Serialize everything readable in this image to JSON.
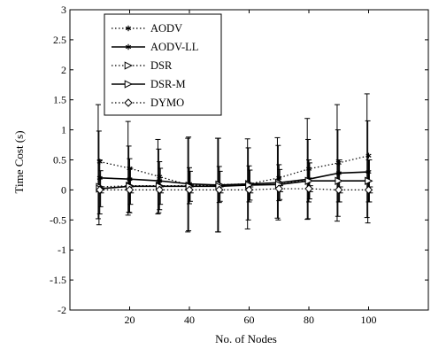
{
  "chart_data": {
    "type": "line",
    "title": "",
    "xlabel": "No. of Nodes",
    "ylabel": "Time Cost (s)",
    "xlim": [
      0,
      120
    ],
    "ylim": [
      -2,
      3
    ],
    "xticks": [
      20,
      40,
      60,
      80,
      100
    ],
    "yticks": [
      -2,
      -1.5,
      -1,
      -0.5,
      0,
      0.5,
      1,
      1.5,
      2,
      2.5,
      3
    ],
    "grid": false,
    "legend_position": "top-left",
    "x": [
      10,
      20,
      30,
      40,
      50,
      60,
      70,
      80,
      90,
      100
    ],
    "series": [
      {
        "name": "AODV",
        "line_style": "dotted",
        "marker": "star",
        "values": [
          0.47,
          0.36,
          0.22,
          0.08,
          0.08,
          0.1,
          0.2,
          0.35,
          0.45,
          0.57
        ],
        "errors": [
          0.95,
          0.78,
          0.62,
          0.78,
          0.78,
          0.75,
          0.67,
          0.84,
          0.97,
          1.03
        ]
      },
      {
        "name": "AODV-LL",
        "line_style": "solid",
        "marker": "star",
        "values": [
          0.2,
          0.18,
          0.15,
          0.1,
          0.08,
          0.1,
          0.12,
          0.18,
          0.28,
          0.3
        ],
        "errors": [
          0.78,
          0.55,
          0.53,
          0.78,
          0.78,
          0.6,
          0.62,
          0.66,
          0.72,
          0.85
        ]
      },
      {
        "name": "DSR",
        "line_style": "dotted",
        "marker": "triangle-right",
        "values": [
          0.05,
          0.07,
          0.07,
          0.07,
          0.09,
          0.1,
          0.12,
          0.15,
          0.15,
          0.15
        ],
        "errors": [
          0.45,
          0.45,
          0.4,
          0.3,
          0.3,
          0.3,
          0.3,
          0.35,
          0.35,
          0.35
        ]
      },
      {
        "name": "DSR-M",
        "line_style": "solid",
        "marker": "triangle-right",
        "values": [
          0.02,
          0.06,
          0.06,
          0.06,
          0.06,
          0.08,
          0.09,
          0.15,
          0.15,
          0.15
        ],
        "errors": [
          0.3,
          0.3,
          0.3,
          0.25,
          0.25,
          0.25,
          0.25,
          0.3,
          0.35,
          0.35
        ]
      },
      {
        "name": "DYMO",
        "line_style": "dotted",
        "marker": "diamond",
        "values": [
          0.0,
          0.0,
          0.0,
          0.0,
          0.0,
          0.0,
          0.02,
          0.02,
          0.0,
          0.0
        ],
        "errors": [
          0.05,
          0.05,
          0.05,
          0.05,
          0.05,
          0.05,
          0.05,
          0.05,
          0.05,
          0.05
        ]
      }
    ]
  }
}
